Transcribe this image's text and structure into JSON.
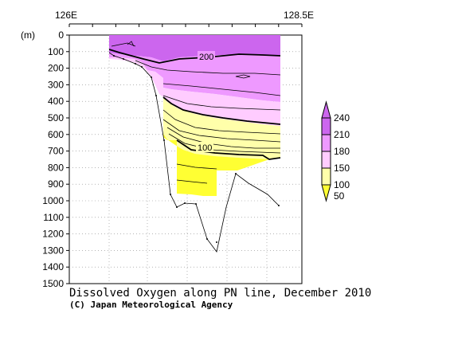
{
  "chart_data": {
    "type": "heatmap",
    "title": "Dissolved Oxygen along PN line, December 2010",
    "credit": "(C) Japan Meteorological Agency",
    "ylabel": "(m)",
    "top_axis_labels": [
      "126E",
      "128.5E"
    ],
    "y_ticks": [
      0,
      100,
      200,
      300,
      400,
      500,
      600,
      700,
      800,
      900,
      1000,
      1100,
      1200,
      1300,
      1400,
      1500
    ],
    "ylim": [
      1500,
      0
    ],
    "xlim_deg": [
      126,
      128.5
    ],
    "grid": true,
    "contour_labels": [
      "200",
      "100"
    ],
    "colorbar": {
      "levels": [
        "50",
        "100",
        "150",
        "180",
        "210",
        "240"
      ],
      "colors": [
        "#ffff33",
        "#ffffaa",
        "#ffccff",
        "#ee99ff",
        "#cc66ee"
      ]
    },
    "bottom_topography_m": [
      [
        126.6,
        75
      ],
      [
        126.8,
        95
      ],
      [
        127.0,
        110
      ],
      [
        127.2,
        130
      ],
      [
        127.35,
        230
      ],
      [
        127.5,
        650
      ],
      [
        127.6,
        950
      ],
      [
        127.75,
        1040
      ],
      [
        127.9,
        1000
      ],
      [
        128.05,
        1250
      ],
      [
        128.2,
        1310
      ],
      [
        128.35,
        860
      ],
      [
        128.55,
        830
      ],
      [
        128.8,
        1020
      ]
    ],
    "fields": [
      {
        "name": "<=100 yellow",
        "color": "#ffff33"
      },
      {
        "name": "100-150",
        "color": "#ffffaa"
      },
      {
        "name": "150-180",
        "color": "#ffccff"
      },
      {
        "name": "180-210",
        "color": "#ee99ff"
      },
      {
        "name": ">210",
        "color": "#cc66ee"
      }
    ]
  }
}
